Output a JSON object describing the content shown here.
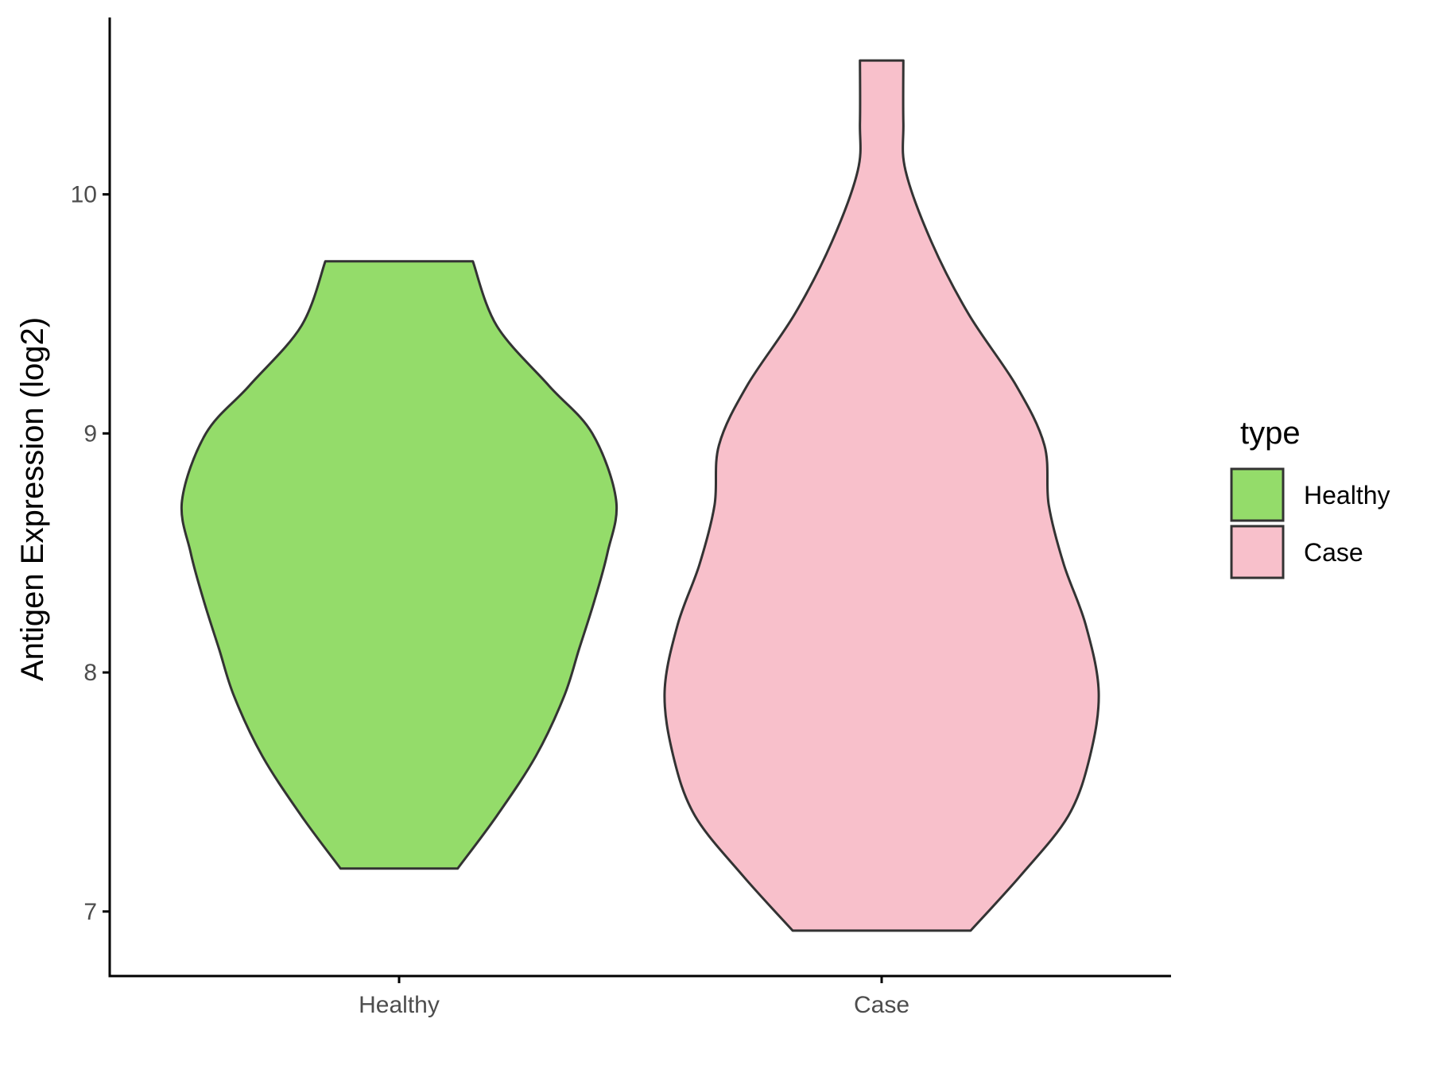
{
  "chart_data": {
    "type": "violin",
    "title": "",
    "xlabel": "",
    "ylabel": "Antigen Expression (log2)",
    "categories": [
      "Healthy",
      "Case"
    ],
    "y_ticks": [
      7,
      8,
      9,
      10
    ],
    "ylim": [
      6.73,
      10.74
    ],
    "grid": false,
    "legend": {
      "title": "type",
      "position": "right",
      "entries": [
        "Healthy",
        "Case"
      ]
    },
    "series": [
      {
        "name": "Healthy",
        "color": "#94DC6A",
        "min": 7.18,
        "max": 9.72,
        "density_profile": [
          [
            7.18,
            0.27
          ],
          [
            7.4,
            0.45
          ],
          [
            7.65,
            0.63
          ],
          [
            7.9,
            0.76
          ],
          [
            8.1,
            0.83
          ],
          [
            8.3,
            0.9
          ],
          [
            8.5,
            0.96
          ],
          [
            8.72,
            1.0
          ],
          [
            9.0,
            0.89
          ],
          [
            9.2,
            0.69
          ],
          [
            9.45,
            0.45
          ],
          [
            9.72,
            0.34
          ]
        ]
      },
      {
        "name": "Case",
        "color": "#F8C0CB",
        "min": 6.92,
        "max": 10.56,
        "density_profile": [
          [
            6.92,
            0.41
          ],
          [
            7.15,
            0.64
          ],
          [
            7.4,
            0.86
          ],
          [
            7.65,
            0.96
          ],
          [
            7.92,
            1.0
          ],
          [
            8.2,
            0.94
          ],
          [
            8.45,
            0.84
          ],
          [
            8.7,
            0.77
          ],
          [
            8.95,
            0.75
          ],
          [
            9.2,
            0.62
          ],
          [
            9.5,
            0.4
          ],
          [
            9.8,
            0.23
          ],
          [
            10.1,
            0.11
          ],
          [
            10.3,
            0.1
          ],
          [
            10.56,
            0.1
          ]
        ]
      }
    ]
  }
}
